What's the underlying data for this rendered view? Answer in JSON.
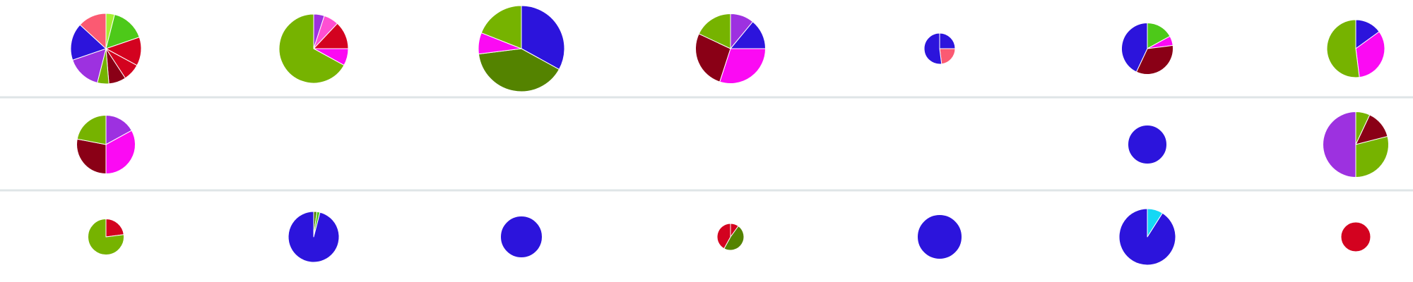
{
  "chart_data": {
    "type": "pie",
    "title": "",
    "layout": "grid-3x7",
    "palette": {
      "blue": "#2c14dc",
      "green": "#76b300",
      "dark_green": "#548300",
      "bright_green": "#4dc919",
      "lime": "#a6f032",
      "red": "#d3021f",
      "dark_red": "#8a0016",
      "magenta": "#fb0af3",
      "pink": "#ff4fd3",
      "violet": "#9d31e0",
      "salmon": "#fb5a72",
      "cyan": "#14d8f5",
      "divider": "#dfe5e7"
    },
    "rows": [
      {
        "pies": [
          {
            "size": 1.0,
            "slices": [
              {
                "value": 3,
                "color": "#a6f032"
              },
              {
                "value": 12,
                "color": "#4dc919"
              },
              {
                "value": 10,
                "color": "#d3021f"
              },
              {
                "value": 6,
                "color": "#d3021f"
              },
              {
                "value": 6,
                "color": "#8a0016"
              },
              {
                "value": 4,
                "color": "#76b300"
              },
              {
                "value": 12,
                "color": "#9d31e0"
              },
              {
                "value": 13,
                "color": "#2c14dc"
              },
              {
                "value": 10,
                "color": "#fb5a72"
              }
            ]
          },
          {
            "size": 0.98,
            "slices": [
              {
                "value": 5,
                "color": "#9d31e0"
              },
              {
                "value": 7,
                "color": "#ff4fd3"
              },
              {
                "value": 13,
                "color": "#d3021f"
              },
              {
                "value": 8,
                "color": "#fb0af3"
              },
              {
                "value": 67,
                "color": "#76b300"
              }
            ]
          },
          {
            "size": 1.22,
            "slices": [
              {
                "value": 33,
                "color": "#2c14dc"
              },
              {
                "value": 40,
                "color": "#548300"
              },
              {
                "value": 8,
                "color": "#fb0af3"
              },
              {
                "value": 19,
                "color": "#76b300"
              }
            ]
          },
          {
            "size": 0.99,
            "slices": [
              {
                "value": 11,
                "color": "#9d31e0"
              },
              {
                "value": 14,
                "color": "#2c14dc"
              },
              {
                "value": 30,
                "color": "#fb0af3"
              },
              {
                "value": 27,
                "color": "#8a0016"
              },
              {
                "value": 18,
                "color": "#76b300"
              }
            ]
          },
          {
            "size": 0.44,
            "slices": [
              {
                "value": 25,
                "color": "#2c14dc"
              },
              {
                "value": 23,
                "color": "#fb5a72"
              },
              {
                "value": 52,
                "color": "#2c14dc"
              }
            ]
          },
          {
            "size": 0.73,
            "slices": [
              {
                "value": 17,
                "color": "#4dc919"
              },
              {
                "value": 6,
                "color": "#fb0af3"
              },
              {
                "value": 34,
                "color": "#8a0016"
              },
              {
                "value": 43,
                "color": "#2c14dc"
              }
            ]
          },
          {
            "size": 0.82,
            "slices": [
              {
                "value": 15,
                "color": "#2c14dc"
              },
              {
                "value": 33,
                "color": "#fb0af3"
              },
              {
                "value": 52,
                "color": "#76b300"
              }
            ]
          }
        ]
      },
      {
        "pies": [
          {
            "size": 0.83,
            "slices": [
              {
                "value": 17,
                "color": "#9d31e0"
              },
              {
                "value": 33,
                "color": "#fb0af3"
              },
              {
                "value": 28,
                "color": "#8a0016"
              },
              {
                "value": 22,
                "color": "#76b300"
              }
            ]
          },
          {
            "size": 0,
            "slices": []
          },
          {
            "size": 0,
            "slices": []
          },
          {
            "size": 0,
            "slices": []
          },
          {
            "size": 0,
            "slices": []
          },
          {
            "size": 0.55,
            "slices": [
              {
                "value": 100,
                "color": "#2c14dc"
              }
            ]
          },
          {
            "size": 0.93,
            "slices": [
              {
                "value": 7,
                "color": "#76b300"
              },
              {
                "value": 14,
                "color": "#8a0016"
              },
              {
                "value": 29,
                "color": "#76b300"
              },
              {
                "value": 50,
                "color": "#9d31e0"
              }
            ]
          }
        ]
      },
      {
        "pies": [
          {
            "size": 0.51,
            "slices": [
              {
                "value": 23,
                "color": "#d3021f"
              },
              {
                "value": 77,
                "color": "#76b300"
              }
            ]
          },
          {
            "size": 0.72,
            "slices": [
              {
                "value": 2,
                "color": "#548300"
              },
              {
                "value": 2,
                "color": "#4dc919"
              },
              {
                "value": 96,
                "color": "#2c14dc"
              }
            ]
          },
          {
            "size": 0.59,
            "slices": [
              {
                "value": 100,
                "color": "#2c14dc"
              }
            ]
          },
          {
            "size": 0.38,
            "slices": [
              {
                "value": 10,
                "color": "#d3021f"
              },
              {
                "value": 48,
                "color": "#548300"
              },
              {
                "value": 42,
                "color": "#d3021f"
              }
            ]
          },
          {
            "size": 0.63,
            "slices": [
              {
                "value": 100,
                "color": "#2c14dc"
              }
            ]
          },
          {
            "size": 0.8,
            "slices": [
              {
                "value": 9,
                "color": "#14d8f5"
              },
              {
                "value": 91,
                "color": "#2c14dc"
              }
            ]
          },
          {
            "size": 0.42,
            "slices": [
              {
                "value": 100,
                "color": "#d3021f"
              }
            ]
          }
        ]
      }
    ]
  }
}
